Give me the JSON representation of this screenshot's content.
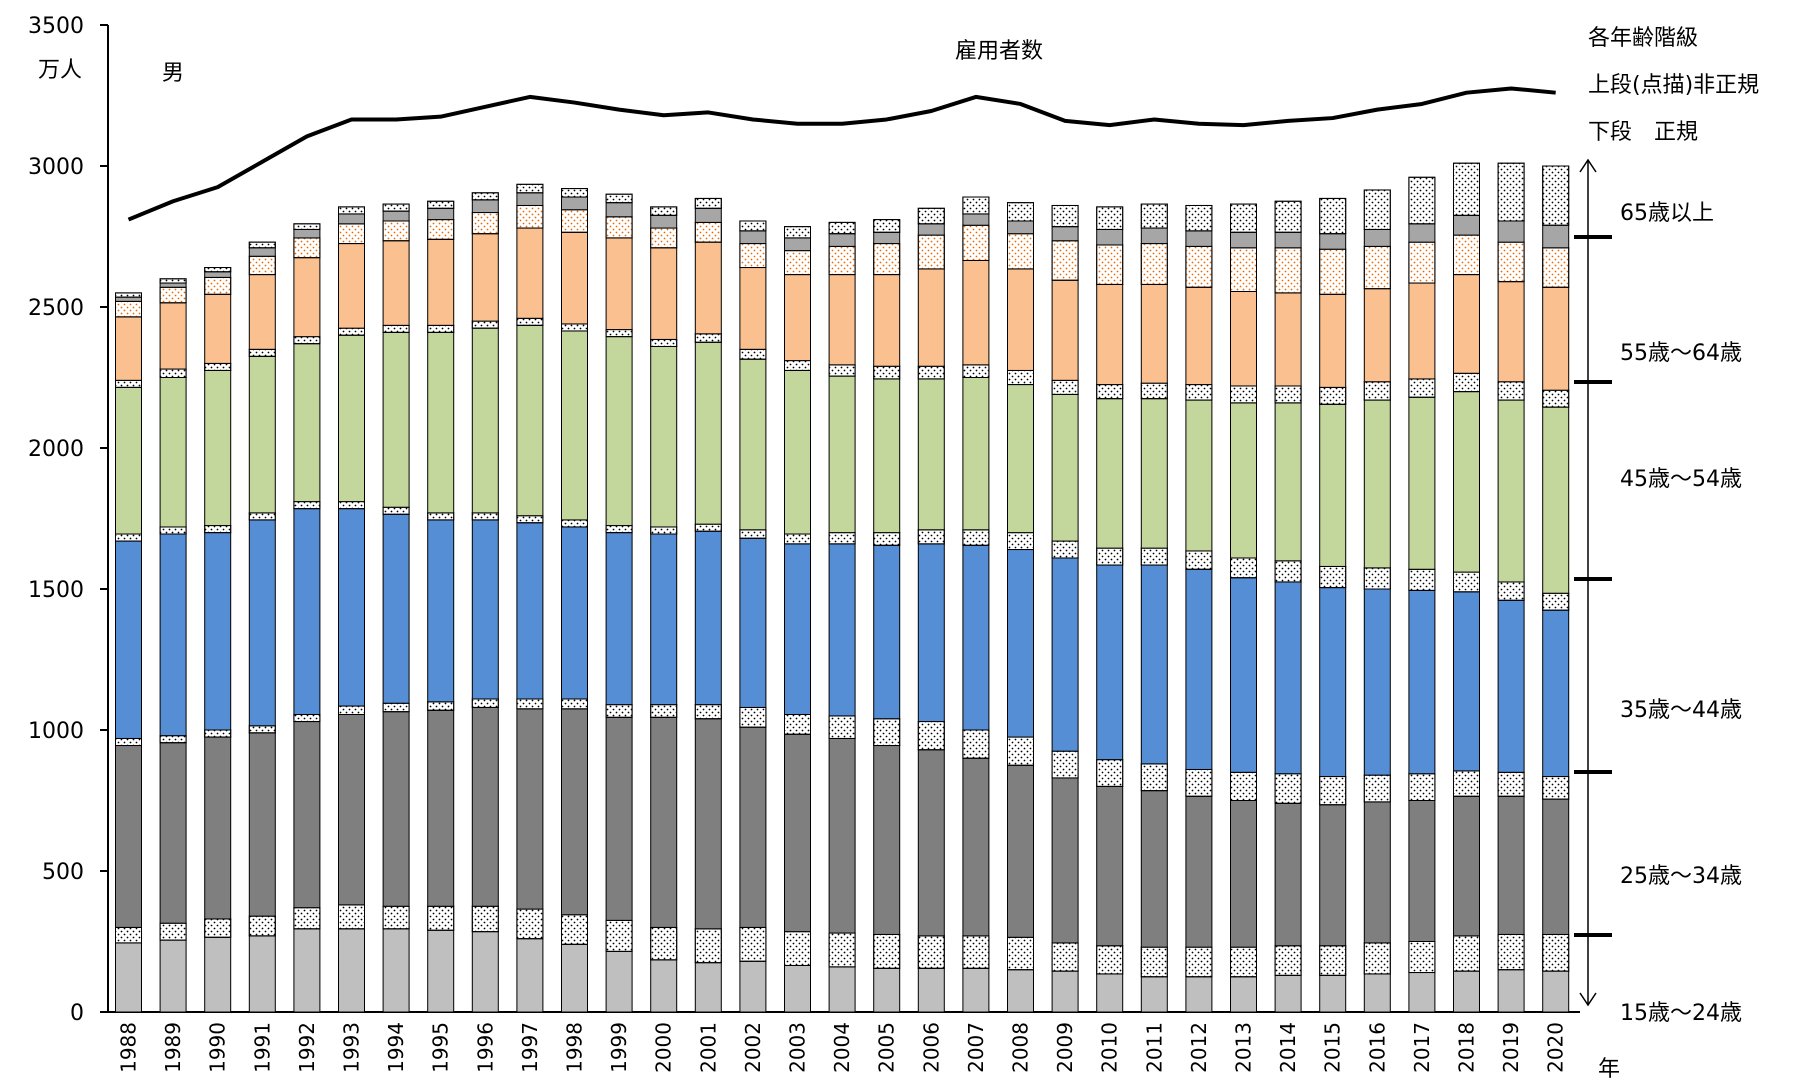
{
  "chart_data": {
    "type": "bar",
    "stacked": true,
    "title": "男",
    "y_unit": "万人",
    "xlabel": "年",
    "ylim": [
      0,
      3500
    ],
    "yticks": [
      0,
      500,
      1000,
      1500,
      2000,
      2500,
      3000,
      3500
    ],
    "categories": [
      "1988",
      "1989",
      "1990",
      "1991",
      "1992",
      "1993",
      "1994",
      "1995",
      "1996",
      "1997",
      "1998",
      "1999",
      "2000",
      "2001",
      "2002",
      "2003",
      "2004",
      "2005",
      "2006",
      "2007",
      "2008",
      "2009",
      "2010",
      "2011",
      "2012",
      "2013",
      "2014",
      "2015",
      "2016",
      "2017",
      "2018",
      "2019",
      "2020"
    ],
    "legend": {
      "title": "各年齢階級",
      "line1": "上段(点描)非正規",
      "line2": "下段　正規",
      "groups": [
        "65歳以上",
        "55歳～64歳",
        "45歳～54歳",
        "35歳～44歳",
        "25歳～34歳",
        "15歳～24歳"
      ]
    },
    "age_groups": [
      {
        "name": "15歳～24歳",
        "color": "#bfbfbf",
        "regular": [
          245,
          255,
          265,
          270,
          295,
          295,
          295,
          290,
          285,
          260,
          240,
          215,
          185,
          175,
          180,
          165,
          160,
          155,
          155,
          155,
          150,
          145,
          135,
          125,
          125,
          125,
          130,
          130,
          135,
          140,
          145,
          150,
          145
        ],
        "irregular": [
          55,
          60,
          65,
          70,
          75,
          85,
          80,
          85,
          90,
          105,
          105,
          110,
          115,
          120,
          120,
          120,
          120,
          120,
          115,
          115,
          115,
          100,
          100,
          105,
          105,
          105,
          105,
          105,
          110,
          110,
          125,
          125,
          130
        ]
      },
      {
        "name": "25歳～34歳",
        "color": "#7f7f7f",
        "regular": [
          645,
          640,
          645,
          650,
          660,
          675,
          690,
          695,
          705,
          710,
          730,
          720,
          745,
          745,
          710,
          700,
          690,
          670,
          660,
          630,
          610,
          585,
          565,
          555,
          535,
          520,
          505,
          500,
          500,
          500,
          495,
          490,
          480
        ],
        "irregular": [
          25,
          25,
          25,
          25,
          25,
          30,
          30,
          30,
          30,
          35,
          35,
          45,
          45,
          50,
          70,
          70,
          80,
          95,
          100,
          100,
          100,
          95,
          95,
          95,
          95,
          100,
          105,
          100,
          95,
          95,
          90,
          85,
          80
        ]
      },
      {
        "name": "35歳～44歳",
        "color": "#558ed5",
        "regular": [
          700,
          715,
          700,
          730,
          730,
          700,
          670,
          645,
          635,
          625,
          610,
          610,
          605,
          615,
          600,
          605,
          610,
          615,
          630,
          655,
          665,
          685,
          690,
          705,
          710,
          690,
          680,
          670,
          660,
          650,
          635,
          610,
          590
        ],
        "irregular": [
          25,
          25,
          25,
          25,
          25,
          25,
          25,
          25,
          25,
          25,
          25,
          25,
          25,
          25,
          30,
          35,
          40,
          45,
          50,
          55,
          60,
          60,
          60,
          60,
          65,
          70,
          75,
          75,
          75,
          75,
          70,
          65,
          60
        ]
      },
      {
        "name": "45歳～54歳",
        "color": "#c3d69b",
        "regular": [
          520,
          530,
          550,
          555,
          560,
          590,
          620,
          640,
          655,
          675,
          670,
          670,
          640,
          645,
          605,
          580,
          555,
          545,
          535,
          540,
          525,
          520,
          530,
          530,
          535,
          550,
          560,
          575,
          595,
          610,
          640,
          645,
          660
        ],
        "irregular": [
          25,
          30,
          25,
          25,
          25,
          25,
          25,
          25,
          25,
          25,
          25,
          25,
          25,
          30,
          35,
          35,
          40,
          45,
          45,
          45,
          50,
          50,
          50,
          55,
          55,
          60,
          60,
          60,
          65,
          65,
          65,
          65,
          60
        ]
      },
      {
        "name": "55歳～64歳",
        "color": "#fac090",
        "regular": [
          225,
          235,
          245,
          265,
          280,
          300,
          300,
          305,
          310,
          320,
          325,
          325,
          325,
          325,
          290,
          305,
          320,
          325,
          345,
          370,
          360,
          355,
          355,
          350,
          345,
          335,
          330,
          330,
          330,
          340,
          350,
          355,
          365
        ],
        "irregular": [
          55,
          55,
          60,
          65,
          70,
          70,
          70,
          70,
          75,
          80,
          80,
          75,
          70,
          70,
          85,
          85,
          100,
          110,
          120,
          125,
          125,
          140,
          140,
          145,
          145,
          155,
          160,
          160,
          150,
          145,
          140,
          140,
          140
        ]
      },
      {
        "name": "65歳以上",
        "color": "#a6a6a6",
        "regular": [
          15,
          15,
          20,
          30,
          30,
          35,
          35,
          40,
          45,
          45,
          45,
          50,
          45,
          50,
          45,
          45,
          45,
          40,
          40,
          40,
          45,
          50,
          55,
          55,
          55,
          55,
          55,
          55,
          60,
          65,
          70,
          75,
          80
        ],
        "irregular": [
          15,
          15,
          15,
          20,
          20,
          25,
          25,
          25,
          25,
          30,
          30,
          30,
          30,
          35,
          35,
          40,
          40,
          45,
          55,
          60,
          65,
          75,
          80,
          85,
          90,
          100,
          110,
          125,
          140,
          165,
          185,
          205,
          210
        ]
      }
    ],
    "line": {
      "name": "雇用者数",
      "values": [
        2810,
        2875,
        2925,
        3015,
        3105,
        3165,
        3165,
        3175,
        3210,
        3245,
        3225,
        3200,
        3180,
        3190,
        3165,
        3150,
        3150,
        3165,
        3195,
        3245,
        3220,
        3160,
        3145,
        3165,
        3150,
        3145,
        3160,
        3170,
        3200,
        3220,
        3260,
        3275,
        3260
      ]
    }
  }
}
